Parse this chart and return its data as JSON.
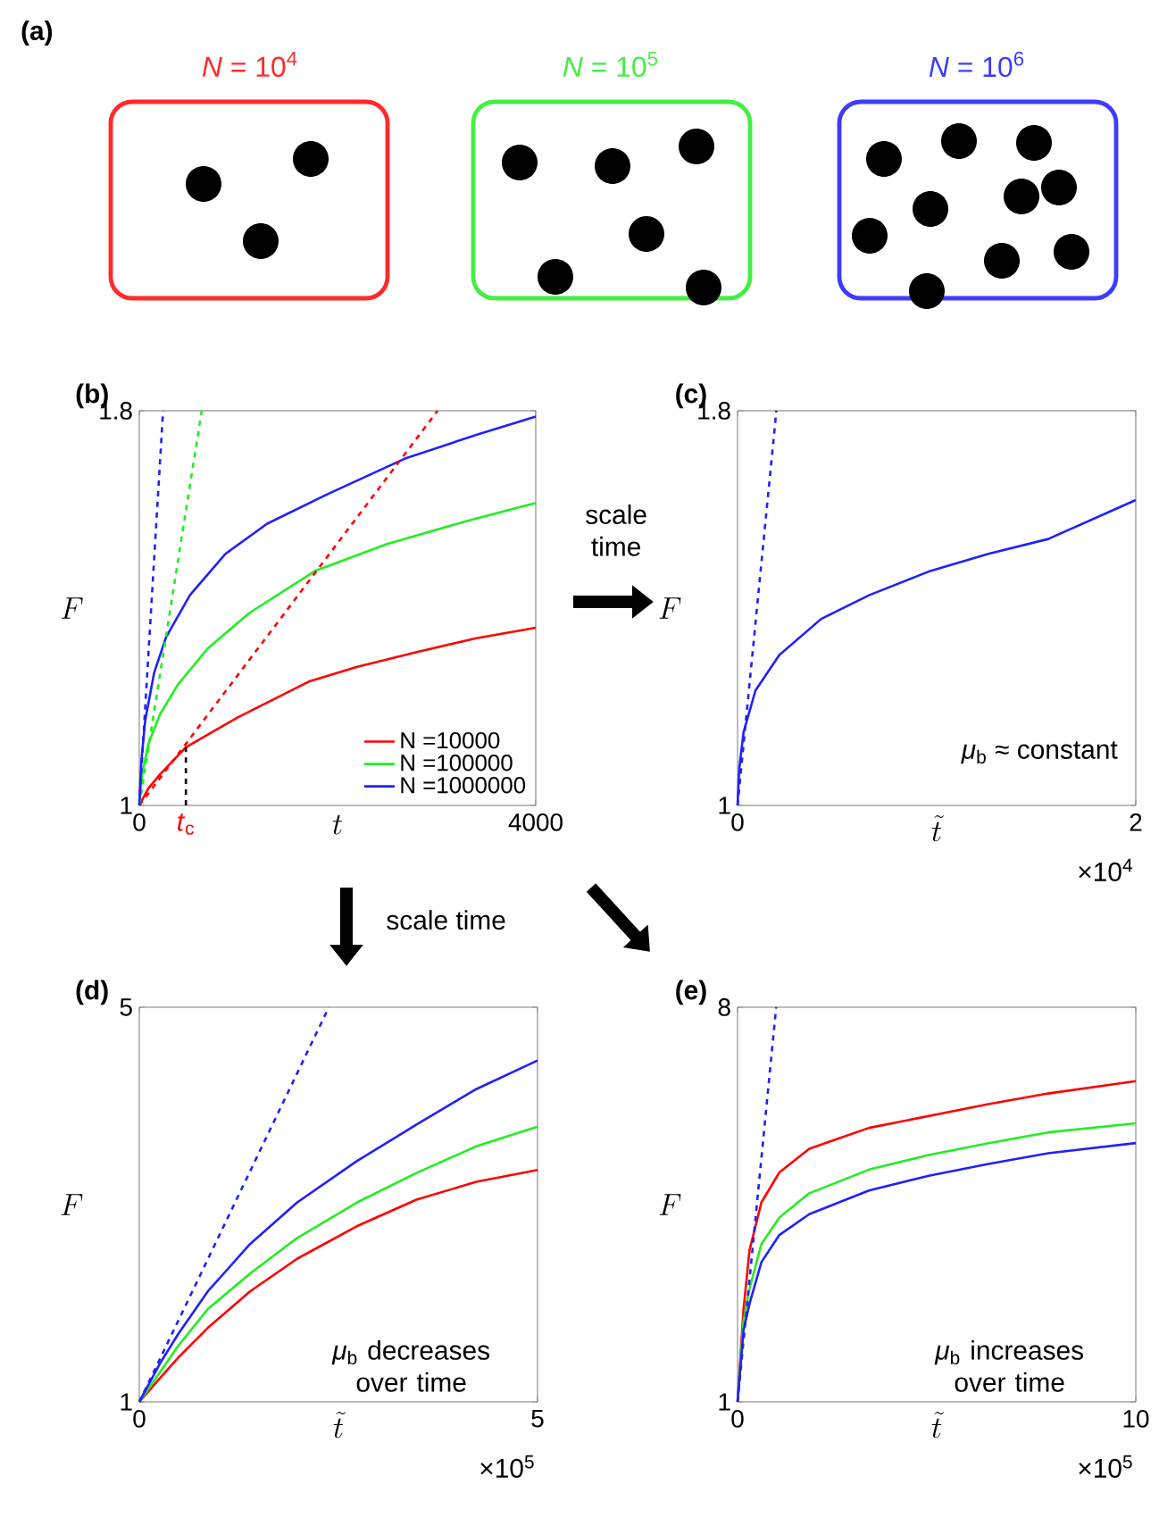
{
  "chart_data": [
    {
      "type": "other",
      "title": "(a)",
      "annotations": [
        "*N* = 10$^{4}$",
        "*N* = 10$^{5}$",
        "*N* = 10$^{6}$"
      ],
      "colors": [
        "#ff2a2a",
        "#44ee44",
        "#3c3cff"
      ]
    },
    {
      "type": "line",
      "title": "(b)",
      "xlabel": "t",
      "ylabel": "F",
      "xlim": [
        0,
        4000
      ],
      "ylim": [
        1,
        1.8
      ],
      "xticks": [
        0,
        4000
      ],
      "yticks": [
        1,
        1.8
      ],
      "legend": "bottom right",
      "series": [
        {
          "name": "N =10000",
          "color": "#ff0000",
          "x": [
            0,
            90,
            210,
            470,
            990,
            1710,
            2200,
            2800,
            3400,
            4000
          ],
          "values": [
            1,
            1.034,
            1.063,
            1.118,
            1.178,
            1.251,
            1.281,
            1.311,
            1.339,
            1.36
          ]
        },
        {
          "name": "N =100000",
          "color": "#22ee22",
          "x": [
            0,
            30,
            90,
            210,
            390,
            690,
            1110,
            1770,
            2500,
            3280,
            4000
          ],
          "values": [
            1,
            1.064,
            1.124,
            1.185,
            1.245,
            1.318,
            1.39,
            1.475,
            1.53,
            1.575,
            1.613
          ]
        },
        {
          "name": "N =1000000",
          "color": "#2020ff",
          "x": [
            0,
            20,
            60,
            150,
            270,
            510,
            870,
            1290,
            1900,
            2680,
            3400,
            4000
          ],
          "values": [
            1,
            1.088,
            1.173,
            1.269,
            1.341,
            1.426,
            1.51,
            1.571,
            1.631,
            1.703,
            1.751,
            1.788
          ]
        },
        {
          "color": "#ff0000",
          "line_style": "dashed",
          "x": [
            0,
            3010
          ],
          "values": [
            1,
            1.8
          ]
        },
        {
          "color": "#22ee22",
          "line_style": "dashed",
          "x": [
            0,
            630
          ],
          "values": [
            1,
            1.8
          ]
        },
        {
          "color": "#2020ff",
          "line_style": "dashed",
          "x": [
            0,
            240
          ],
          "values": [
            1,
            1.8
          ]
        },
        {
          "color": "#000000",
          "line_style": "dashed",
          "x": [
            470,
            470
          ],
          "values": [
            1,
            1.118
          ]
        }
      ],
      "annotations": [
        {
          "text": "*t*$_{c}$",
          "x": 470,
          "y": 1
        },
        "scale time",
        "scale time"
      ]
    },
    {
      "type": "line",
      "title": "(c)",
      "xlabel": "\\tilde{t}",
      "ylabel": "F",
      "xlim": [
        0,
        2
      ],
      "ylim": [
        1,
        1.8
      ],
      "xticks": [
        0,
        2
      ],
      "yticks": [
        1,
        1.8
      ],
      "series": [
        {
          "color": "#2020ff",
          "x": [
            0,
            0.009,
            0.03,
            0.09,
            0.21,
            0.42,
            0.66,
            0.96,
            1.26,
            1.56,
            2
          ],
          "values": [
            1,
            1.076,
            1.148,
            1.233,
            1.305,
            1.378,
            1.426,
            1.474,
            1.51,
            1.54,
            1.619
          ]
        },
        {
          "color": "#2020ff",
          "line_style": "dashed",
          "x": [
            0,
            0.195
          ],
          "values": [
            1,
            1.8
          ]
        }
      ],
      "annotations": [
        "×10$^{4}$",
        "*μ*$_{b}$ ≈ constant"
      ]
    },
    {
      "type": "line",
      "title": "(d)",
      "xlabel": "\\tilde{t}",
      "ylabel": "F",
      "xlim": [
        0,
        5
      ],
      "ylim": [
        1,
        5
      ],
      "xticks": [
        0,
        5
      ],
      "yticks": [
        1,
        5
      ],
      "series": [
        {
          "color": "#ff0000",
          "x": [
            0,
            0.26,
            0.49,
            0.86,
            1.39,
            1.98,
            2.73,
            3.48,
            4.23,
            5
          ],
          "values": [
            1,
            1.24,
            1.45,
            1.75,
            2.12,
            2.45,
            2.78,
            3.05,
            3.23,
            3.35
          ]
        },
        {
          "color": "#22ee22",
          "x": [
            0,
            0.26,
            0.49,
            0.86,
            1.39,
            1.98,
            2.73,
            3.48,
            4.23,
            5
          ],
          "values": [
            1,
            1.3,
            1.57,
            1.94,
            2.3,
            2.66,
            3.02,
            3.32,
            3.59,
            3.79
          ]
        },
        {
          "color": "#2020ff",
          "x": [
            0,
            0.26,
            0.49,
            0.86,
            1.39,
            1.98,
            2.73,
            3.48,
            4.23,
            5
          ],
          "values": [
            1,
            1.39,
            1.69,
            2.12,
            2.6,
            3.02,
            3.44,
            3.81,
            4.17,
            4.46
          ]
        },
        {
          "color": "#2020ff",
          "line_style": "dashed",
          "x": [
            0,
            2.38
          ],
          "values": [
            1,
            5
          ]
        }
      ],
      "annotations": [
        "×10$^{5}$",
        "*μ*$_{b}$ decreases over time"
      ]
    },
    {
      "type": "line",
      "title": "(e)",
      "xlabel": "\\tilde{t}",
      "ylabel": "F",
      "xlim": [
        0,
        10
      ],
      "ylim": [
        1,
        8
      ],
      "xticks": [
        0,
        10
      ],
      "yticks": [
        1,
        8
      ],
      "series": [
        {
          "color": "#ff0000",
          "x": [
            0,
            0.15,
            0.3,
            0.6,
            1.05,
            1.8,
            3.3,
            4.8,
            6.3,
            7.8,
            10
          ],
          "values": [
            1,
            2.64,
            3.69,
            4.54,
            5.07,
            5.49,
            5.86,
            6.07,
            6.28,
            6.47,
            6.69
          ]
        },
        {
          "color": "#22ee22",
          "x": [
            0,
            0.15,
            0.3,
            0.6,
            1.05,
            1.8,
            3.3,
            4.8,
            6.3,
            7.8,
            10
          ],
          "values": [
            1,
            2.43,
            3.01,
            3.8,
            4.27,
            4.7,
            5.12,
            5.38,
            5.59,
            5.78,
            5.94
          ]
        },
        {
          "color": "#2020ff",
          "x": [
            0,
            0.15,
            0.3,
            0.6,
            1.05,
            1.8,
            3.3,
            4.8,
            6.3,
            7.8,
            10
          ],
          "values": [
            1,
            2.27,
            2.74,
            3.48,
            3.96,
            4.33,
            4.75,
            5.01,
            5.22,
            5.41,
            5.59
          ]
        },
        {
          "color": "#2020ff",
          "line_style": "dashed",
          "x": [
            0,
            0.97
          ],
          "values": [
            1,
            8
          ]
        }
      ],
      "annotations": [
        "×10$^{5}$",
        "*μ*$_{b}$ increases over time"
      ]
    }
  ]
}
